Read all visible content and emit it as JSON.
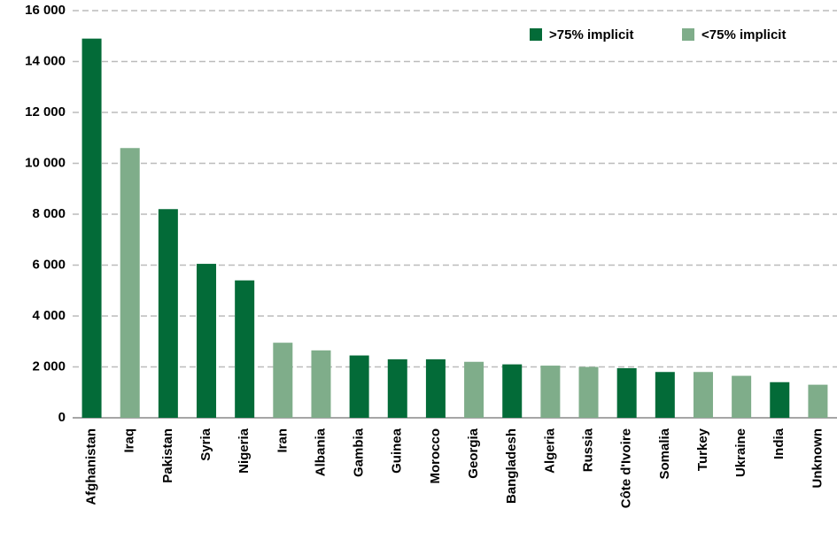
{
  "chart_data": {
    "type": "bar",
    "categories": [
      "Afghanistan",
      "Iraq",
      "Pakistan",
      "Syria",
      "Nigeria",
      "Iran",
      "Albania",
      "Gambia",
      "Guinea",
      "Morocco",
      "Georgia",
      "Bangladesh",
      "Algeria",
      "Russia",
      "Côte d'Ivoire",
      "Somalia",
      "Turkey",
      "Ukraine",
      "India",
      "Unknown"
    ],
    "series": [
      {
        "name": ">75% implicit",
        "color": "#036b38",
        "values": [
          14900,
          null,
          8200,
          6050,
          5400,
          null,
          null,
          2450,
          2300,
          2300,
          null,
          2100,
          null,
          null,
          1950,
          1800,
          null,
          null,
          1400,
          null
        ]
      },
      {
        "name": "<75% implicit",
        "color": "#7fad8a",
        "values": [
          null,
          10600,
          null,
          null,
          null,
          2950,
          2650,
          null,
          null,
          null,
          2200,
          null,
          2050,
          2000,
          null,
          null,
          1800,
          1650,
          null,
          1300
        ]
      }
    ],
    "ylim": [
      0,
      16000
    ],
    "yticks": [
      {
        "value": 0,
        "label": "0"
      },
      {
        "value": 2000,
        "label": "2 000"
      },
      {
        "value": 4000,
        "label": "4 000"
      },
      {
        "value": 6000,
        "label": "6 000"
      },
      {
        "value": 8000,
        "label": "8 000"
      },
      {
        "value": 10000,
        "label": "10 000"
      },
      {
        "value": 12000,
        "label": "12 000"
      },
      {
        "value": 14000,
        "label": "14 000"
      },
      {
        "value": 16000,
        "label": "16 000"
      }
    ],
    "grid": true,
    "legend": "top-right"
  }
}
